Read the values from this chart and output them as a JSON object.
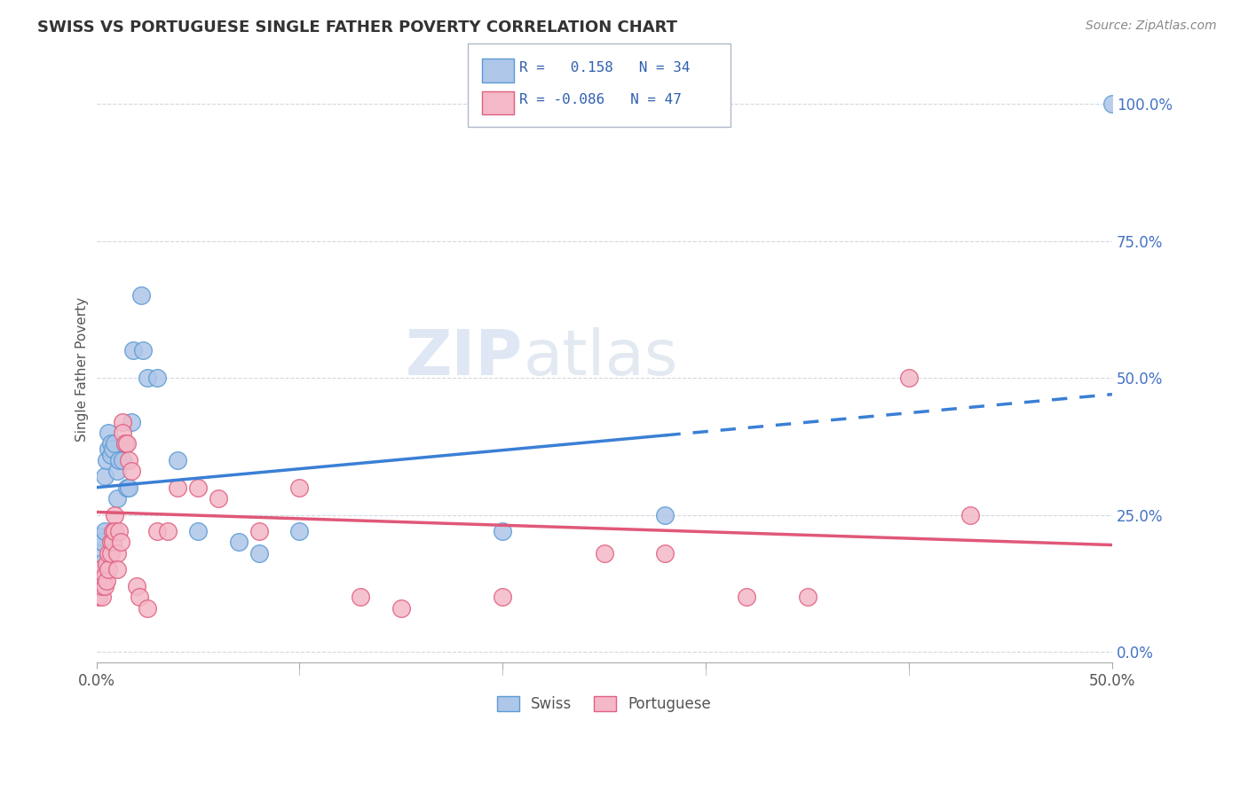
{
  "title": "SWISS VS PORTUGUESE SINGLE FATHER POVERTY CORRELATION CHART",
  "source": "Source: ZipAtlas.com",
  "ylabel": "Single Father Poverty",
  "watermark_zip": "ZIP",
  "watermark_atlas": "atlas",
  "xlim": [
    0.0,
    0.5
  ],
  "ylim": [
    -0.02,
    1.05
  ],
  "x_ticks": [
    0.0,
    0.1,
    0.2,
    0.3,
    0.4,
    0.5
  ],
  "x_tick_labels_show": [
    "0.0%",
    "",
    "",
    "",
    "",
    "50.0%"
  ],
  "y_ticks_right": [
    0.0,
    0.25,
    0.5,
    0.75,
    1.0
  ],
  "y_tick_labels_right": [
    "0.0%",
    "25.0%",
    "50.0%",
    "75.0%",
    "100.0%"
  ],
  "swiss_R": 0.158,
  "swiss_N": 34,
  "port_R": -0.086,
  "port_N": 47,
  "swiss_fill": "#aec6e8",
  "swiss_edge": "#5b9bd5",
  "port_fill": "#f4b8c8",
  "port_edge": "#e06080",
  "swiss_line_color": "#3a7fd5",
  "port_line_color": "#e05878",
  "grid_color": "#d0d8e0",
  "swiss_line_start_x": 0.0,
  "swiss_line_start_y": 0.3,
  "swiss_line_solid_end_x": 0.28,
  "swiss_line_end_x": 0.5,
  "swiss_line_end_y": 0.47,
  "port_line_start_x": 0.0,
  "port_line_start_y": 0.255,
  "port_line_end_x": 0.5,
  "port_line_end_y": 0.195,
  "swiss_points": [
    [
      0.001,
      0.18
    ],
    [
      0.002,
      0.21
    ],
    [
      0.002,
      0.16
    ],
    [
      0.003,
      0.2
    ],
    [
      0.004,
      0.22
    ],
    [
      0.004,
      0.32
    ],
    [
      0.005,
      0.35
    ],
    [
      0.006,
      0.37
    ],
    [
      0.006,
      0.4
    ],
    [
      0.007,
      0.38
    ],
    [
      0.007,
      0.36
    ],
    [
      0.008,
      0.37
    ],
    [
      0.009,
      0.38
    ],
    [
      0.01,
      0.33
    ],
    [
      0.01,
      0.28
    ],
    [
      0.011,
      0.35
    ],
    [
      0.013,
      0.35
    ],
    [
      0.014,
      0.38
    ],
    [
      0.015,
      0.3
    ],
    [
      0.016,
      0.3
    ],
    [
      0.017,
      0.42
    ],
    [
      0.018,
      0.55
    ],
    [
      0.022,
      0.65
    ],
    [
      0.023,
      0.55
    ],
    [
      0.025,
      0.5
    ],
    [
      0.03,
      0.5
    ],
    [
      0.04,
      0.35
    ],
    [
      0.05,
      0.22
    ],
    [
      0.07,
      0.2
    ],
    [
      0.08,
      0.18
    ],
    [
      0.1,
      0.22
    ],
    [
      0.2,
      0.22
    ],
    [
      0.28,
      0.25
    ],
    [
      0.5,
      1.0
    ]
  ],
  "port_points": [
    [
      0.001,
      0.1
    ],
    [
      0.001,
      0.12
    ],
    [
      0.002,
      0.15
    ],
    [
      0.002,
      0.13
    ],
    [
      0.003,
      0.1
    ],
    [
      0.003,
      0.12
    ],
    [
      0.004,
      0.14
    ],
    [
      0.004,
      0.12
    ],
    [
      0.005,
      0.16
    ],
    [
      0.005,
      0.13
    ],
    [
      0.006,
      0.18
    ],
    [
      0.006,
      0.15
    ],
    [
      0.007,
      0.2
    ],
    [
      0.007,
      0.18
    ],
    [
      0.008,
      0.22
    ],
    [
      0.008,
      0.2
    ],
    [
      0.009,
      0.25
    ],
    [
      0.009,
      0.22
    ],
    [
      0.01,
      0.18
    ],
    [
      0.01,
      0.15
    ],
    [
      0.011,
      0.22
    ],
    [
      0.012,
      0.2
    ],
    [
      0.013,
      0.42
    ],
    [
      0.013,
      0.4
    ],
    [
      0.014,
      0.38
    ],
    [
      0.015,
      0.38
    ],
    [
      0.016,
      0.35
    ],
    [
      0.017,
      0.33
    ],
    [
      0.02,
      0.12
    ],
    [
      0.021,
      0.1
    ],
    [
      0.025,
      0.08
    ],
    [
      0.03,
      0.22
    ],
    [
      0.035,
      0.22
    ],
    [
      0.04,
      0.3
    ],
    [
      0.05,
      0.3
    ],
    [
      0.06,
      0.28
    ],
    [
      0.08,
      0.22
    ],
    [
      0.1,
      0.3
    ],
    [
      0.13,
      0.1
    ],
    [
      0.15,
      0.08
    ],
    [
      0.2,
      0.1
    ],
    [
      0.25,
      0.18
    ],
    [
      0.28,
      0.18
    ],
    [
      0.32,
      0.1
    ],
    [
      0.35,
      0.1
    ],
    [
      0.4,
      0.5
    ],
    [
      0.43,
      0.25
    ]
  ]
}
